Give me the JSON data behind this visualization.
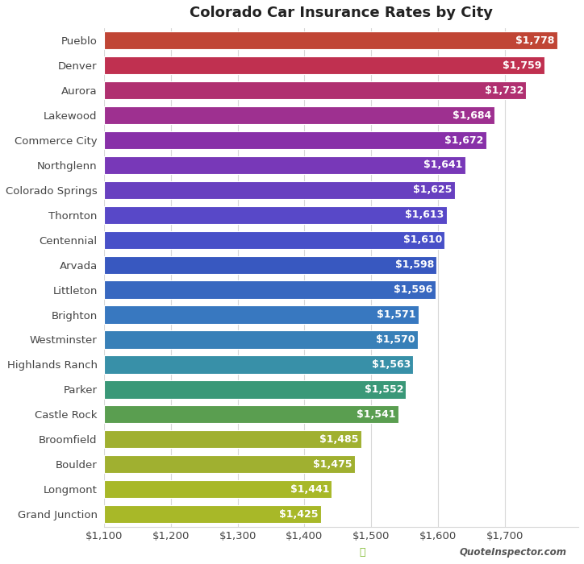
{
  "title": "Colorado Car Insurance Rates by City",
  "cities": [
    "Grand Junction",
    "Longmont",
    "Boulder",
    "Broomfield",
    "Castle Rock",
    "Parker",
    "Highlands Ranch",
    "Westminster",
    "Brighton",
    "Littleton",
    "Arvada",
    "Centennial",
    "Thornton",
    "Colorado Springs",
    "Northglenn",
    "Commerce City",
    "Lakewood",
    "Aurora",
    "Denver",
    "Pueblo"
  ],
  "values": [
    1425,
    1441,
    1475,
    1485,
    1541,
    1552,
    1563,
    1570,
    1571,
    1596,
    1598,
    1610,
    1613,
    1625,
    1641,
    1672,
    1684,
    1732,
    1759,
    1778
  ],
  "bar_colors": [
    "#a8b828",
    "#a8b828",
    "#a0b030",
    "#a0b030",
    "#5a9e50",
    "#3a9878",
    "#3890a8",
    "#3880b8",
    "#3878c0",
    "#3868c0",
    "#3858c0",
    "#4850c8",
    "#5848c8",
    "#6840c0",
    "#7838b8",
    "#8830a8",
    "#9e3090",
    "#b03070",
    "#c03050",
    "#c04535"
  ],
  "xlim_min": 1100,
  "xlim_max": 1810,
  "xticks": [
    1100,
    1200,
    1300,
    1400,
    1500,
    1600,
    1700
  ],
  "value_label_fontsize": 9,
  "title_fontsize": 13,
  "tick_fontsize": 9.5,
  "bar_height": 0.72,
  "bg_color": "#ffffff",
  "grid_color": "#d8d8d8",
  "label_color": "#ffffff",
  "watermark": "QuoteInspector.com"
}
